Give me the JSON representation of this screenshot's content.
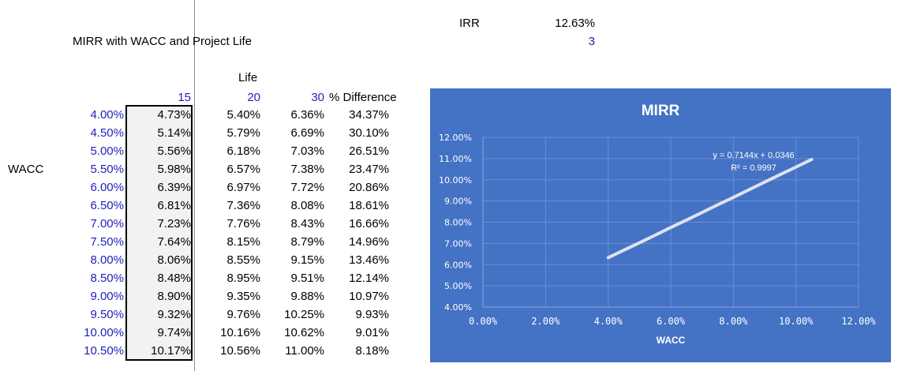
{
  "header": {
    "irr_label": "IRR",
    "irr_value": "12.63%",
    "irr_sub_value": "3",
    "title": "MIRR with WACC and Project Life",
    "life_label": "Life",
    "wacc_label": "WACC",
    "life_values": [
      "15",
      "20",
      "30"
    ],
    "diff_label": "% Difference"
  },
  "table": {
    "rows": [
      {
        "wacc": "4.00%",
        "l15": "4.73%",
        "l20": "5.40%",
        "l30": "6.36%",
        "diff": "34.37%"
      },
      {
        "wacc": "4.50%",
        "l15": "5.14%",
        "l20": "5.79%",
        "l30": "6.69%",
        "diff": "30.10%"
      },
      {
        "wacc": "5.00%",
        "l15": "5.56%",
        "l20": "6.18%",
        "l30": "7.03%",
        "diff": "26.51%"
      },
      {
        "wacc": "5.50%",
        "l15": "5.98%",
        "l20": "6.57%",
        "l30": "7.38%",
        "diff": "23.47%"
      },
      {
        "wacc": "6.00%",
        "l15": "6.39%",
        "l20": "6.97%",
        "l30": "7.72%",
        "diff": "20.86%"
      },
      {
        "wacc": "6.50%",
        "l15": "6.81%",
        "l20": "7.36%",
        "l30": "8.08%",
        "diff": "18.61%"
      },
      {
        "wacc": "7.00%",
        "l15": "7.23%",
        "l20": "7.76%",
        "l30": "8.43%",
        "diff": "16.66%"
      },
      {
        "wacc": "7.50%",
        "l15": "7.64%",
        "l20": "8.15%",
        "l30": "8.79%",
        "diff": "14.96%"
      },
      {
        "wacc": "8.00%",
        "l15": "8.06%",
        "l20": "8.55%",
        "l30": "9.15%",
        "diff": "13.46%"
      },
      {
        "wacc": "8.50%",
        "l15": "8.48%",
        "l20": "8.95%",
        "l30": "9.51%",
        "diff": "12.14%"
      },
      {
        "wacc": "9.00%",
        "l15": "8.90%",
        "l20": "9.35%",
        "l30": "9.88%",
        "diff": "10.97%"
      },
      {
        "wacc": "9.50%",
        "l15": "9.32%",
        "l20": "9.76%",
        "l30": "10.25%",
        "diff": "9.93%"
      },
      {
        "wacc": "10.00%",
        "l15": "9.74%",
        "l20": "10.16%",
        "l30": "10.62%",
        "diff": "9.01%"
      },
      {
        "wacc": "10.50%",
        "l15": "10.17%",
        "l20": "10.56%",
        "l30": "11.00%",
        "diff": "8.18%"
      }
    ]
  },
  "colors": {
    "blue_text": "#1f1fb8",
    "chart_bg": "#4472c4",
    "line": "#dce3f0"
  },
  "chart_data": {
    "type": "line",
    "title": "MIRR",
    "xlabel": "WACC",
    "ylabel": "",
    "xlim": [
      0,
      0.12
    ],
    "ylim": [
      0.04,
      0.12
    ],
    "x_ticks": [
      "0.00%",
      "2.00%",
      "4.00%",
      "6.00%",
      "8.00%",
      "10.00%",
      "12.00%"
    ],
    "y_ticks": [
      "4.00%",
      "5.00%",
      "6.00%",
      "7.00%",
      "8.00%",
      "9.00%",
      "10.00%",
      "11.00%",
      "12.00%"
    ],
    "grid": true,
    "series": [
      {
        "x": [
          0.04,
          0.045,
          0.05,
          0.055,
          0.06,
          0.065,
          0.07,
          0.075,
          0.08,
          0.085,
          0.09,
          0.095,
          0.1,
          0.105
        ],
        "y": [
          0.0633,
          0.0668,
          0.0703,
          0.0739,
          0.0775,
          0.081,
          0.0846,
          0.0882,
          0.0917,
          0.0953,
          0.0989,
          0.1025,
          0.106,
          0.1096
        ]
      }
    ],
    "trendline": {
      "equation": "y = 0.7144x + 0.0346",
      "r2": "R² = 0.9997"
    }
  }
}
